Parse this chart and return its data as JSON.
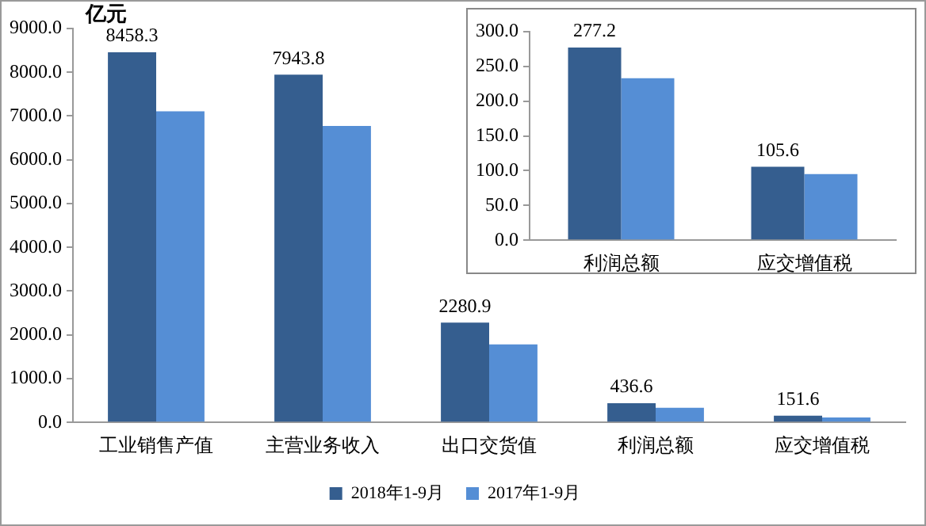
{
  "chart_data": [
    {
      "type": "bar",
      "ylabel": "亿元",
      "categories": [
        "工业销售产值",
        "主营业务收入",
        "出口交货值",
        "利润总额",
        "应交增值税"
      ],
      "series": [
        {
          "name": "2018年1-9月",
          "color": "#355e8f",
          "values": [
            8458.3,
            7943.8,
            2280.9,
            436.6,
            151.6
          ],
          "value_labels": [
            "8458.3",
            "7943.8",
            "2280.9",
            "436.6",
            "151.6"
          ]
        },
        {
          "name": "2017年1-9月",
          "color": "#558ed5",
          "values": [
            7110,
            6775,
            1780,
            336,
            110
          ]
        }
      ],
      "ylim": [
        0,
        9000
      ],
      "yticks": [
        {
          "value": 0,
          "label": "0.0"
        },
        {
          "value": 1000,
          "label": "1000.0"
        },
        {
          "value": 2000,
          "label": "2000.0"
        },
        {
          "value": 3000,
          "label": "3000.0"
        },
        {
          "value": 4000,
          "label": "4000.0"
        },
        {
          "value": 5000,
          "label": "5000.0"
        },
        {
          "value": 6000,
          "label": "6000.0"
        },
        {
          "value": 7000,
          "label": "7000.0"
        },
        {
          "value": 8000,
          "label": "8000.0"
        },
        {
          "value": 9000,
          "label": "9000.0"
        }
      ],
      "grid": false,
      "legend": "bottom"
    },
    {
      "type": "bar",
      "categories": [
        "利润总额",
        "应交增值税"
      ],
      "series": [
        {
          "color": "#355e8f",
          "values": [
            277.2,
            105.6
          ],
          "value_labels": [
            "277.2",
            "105.6"
          ]
        },
        {
          "color": "#558ed5",
          "values": [
            233,
            95
          ]
        }
      ],
      "ylim": [
        0,
        300
      ],
      "yticks": [
        {
          "value": 0,
          "label": "0.0"
        },
        {
          "value": 50,
          "label": "50.0"
        },
        {
          "value": 100,
          "label": "100.0"
        },
        {
          "value": 150,
          "label": "150.0"
        },
        {
          "value": 200,
          "label": "200.0"
        },
        {
          "value": 250,
          "label": "250.0"
        },
        {
          "value": 300,
          "label": "300.0"
        }
      ],
      "grid": false,
      "legend": false
    }
  ]
}
